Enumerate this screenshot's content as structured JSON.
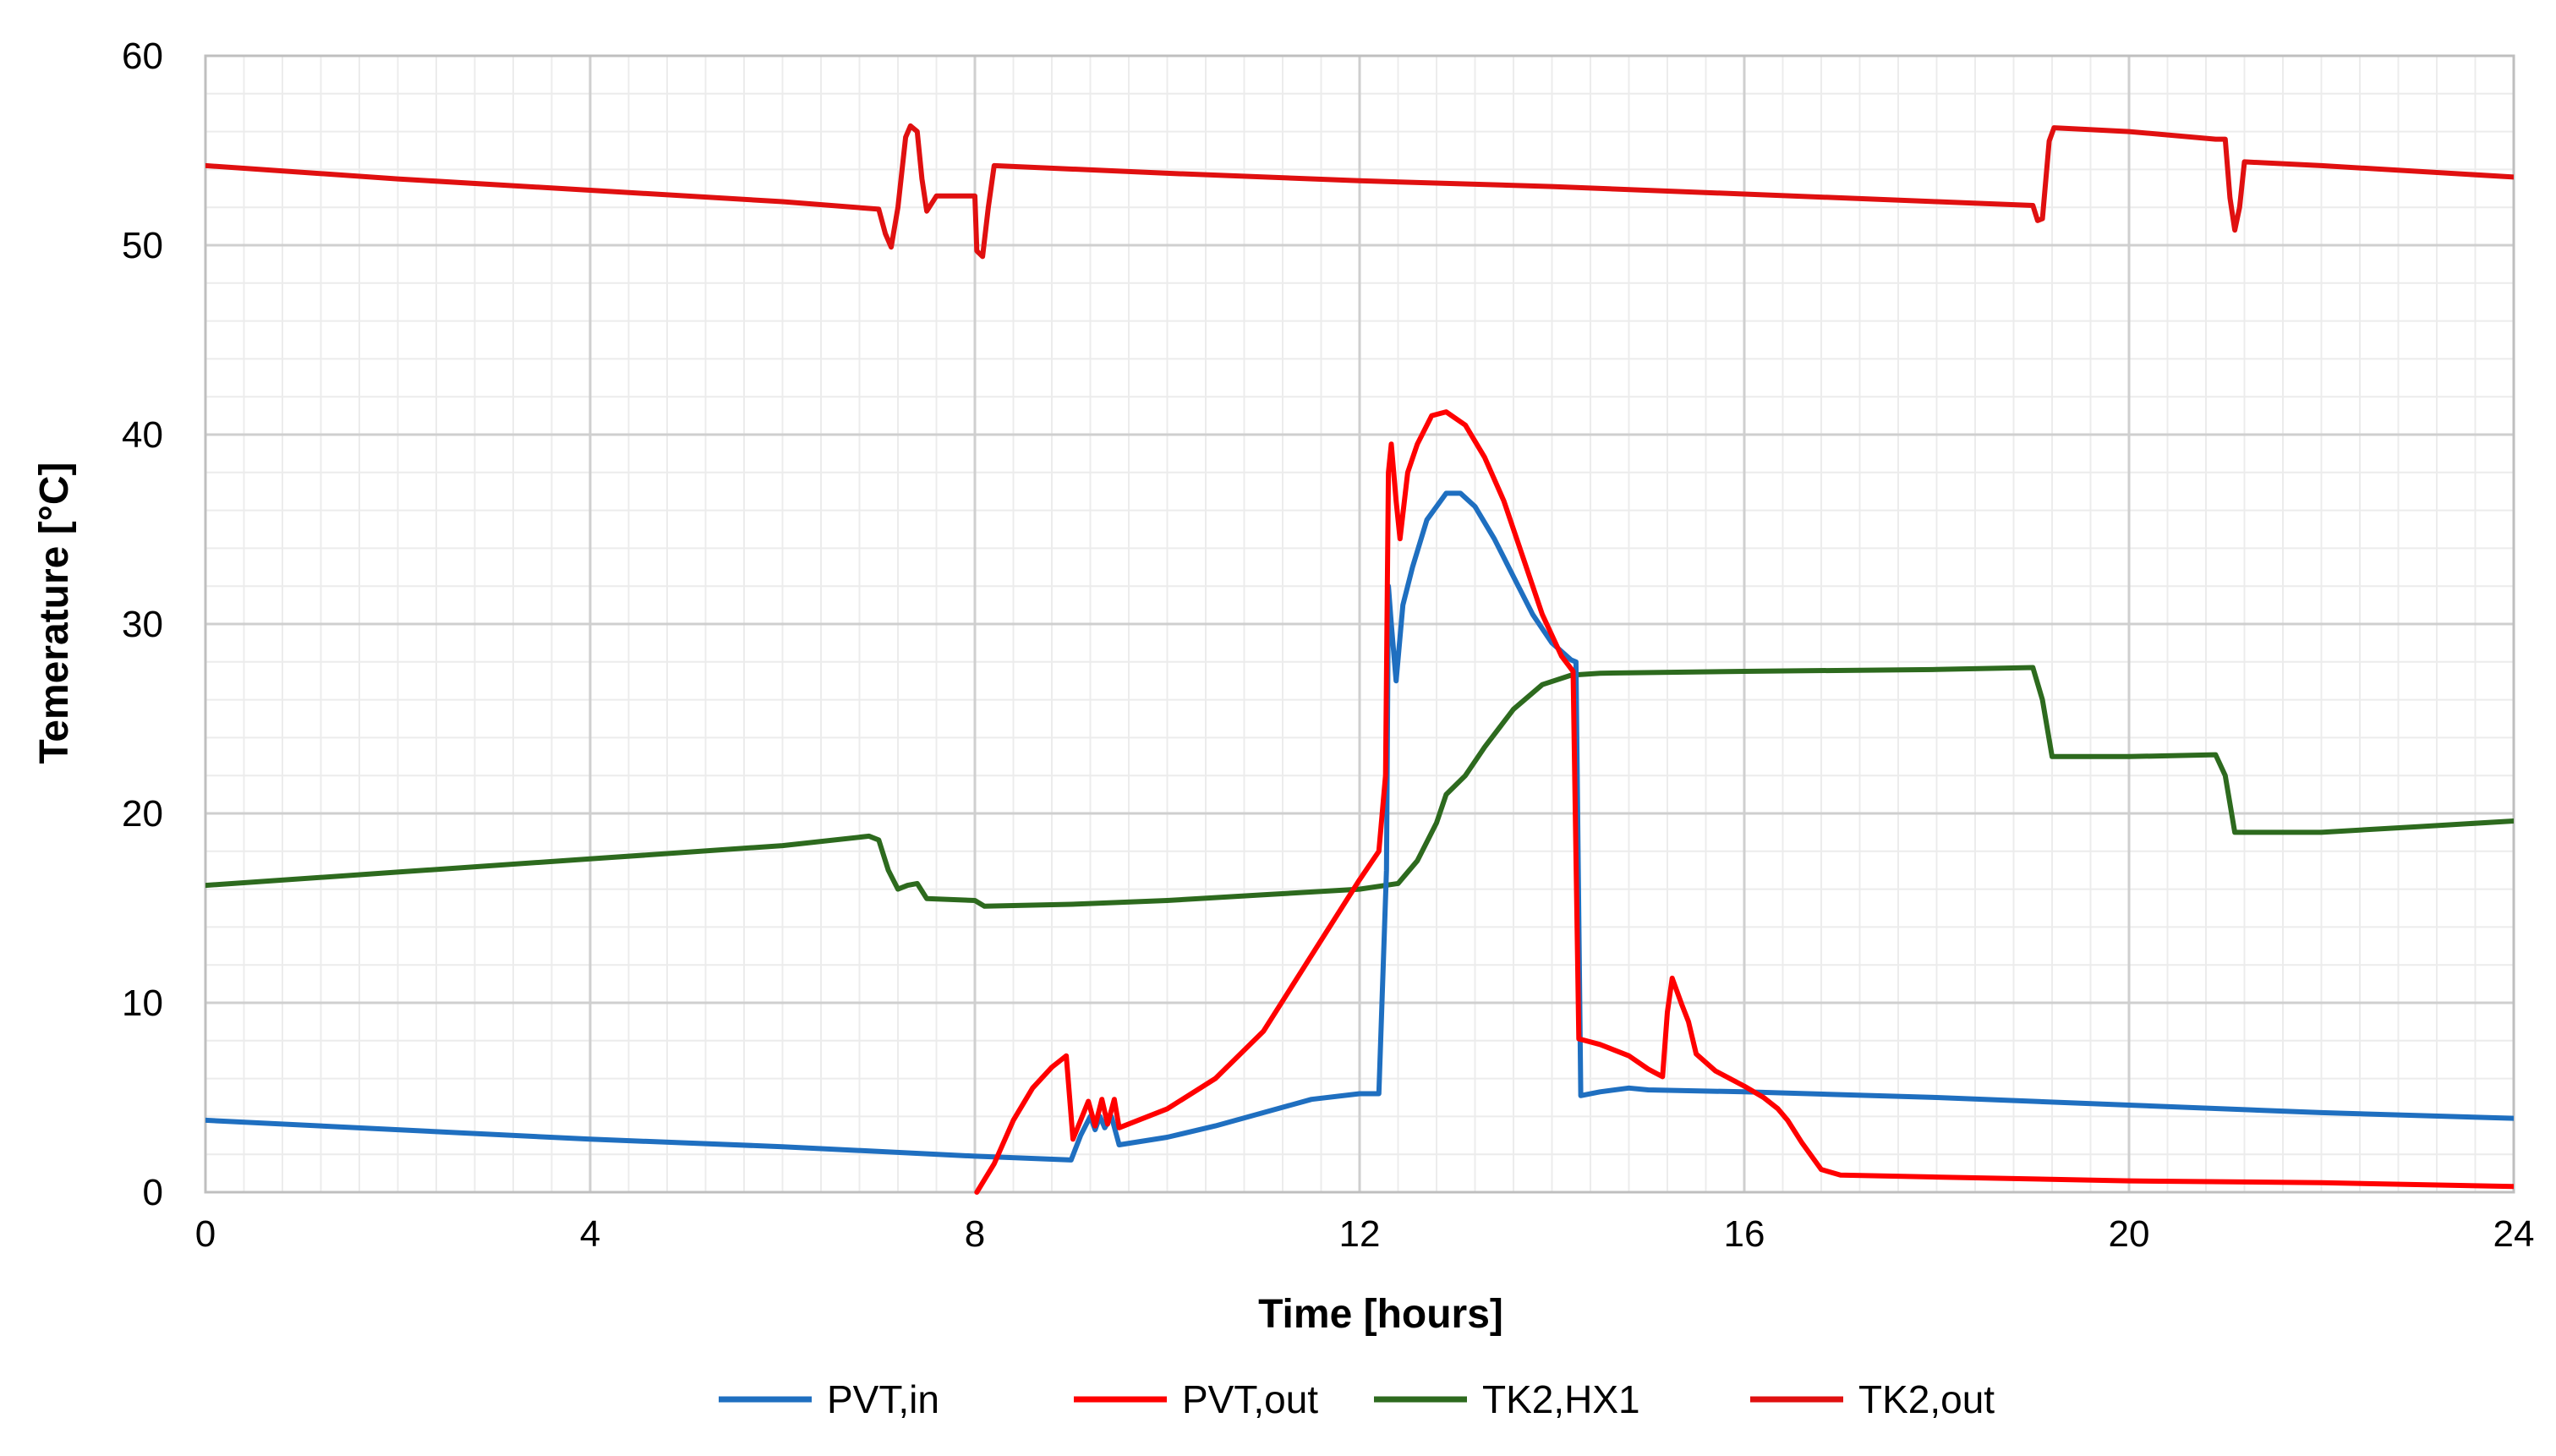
{
  "chart_data": {
    "type": "line",
    "title": "",
    "xlabel": "Time [hours]",
    "ylabel": "Temerature [°C]",
    "xlim": [
      0,
      24
    ],
    "ylim": [
      0,
      60
    ],
    "x_ticks": [
      0,
      4,
      8,
      12,
      16,
      20,
      24
    ],
    "y_ticks": [
      0,
      10,
      20,
      30,
      40,
      50,
      60
    ],
    "x_minor_step": 0.4,
    "y_minor_step": 2,
    "grid": true,
    "legend_position": "bottom",
    "series": [
      {
        "name": "PVT,in",
        "color": "#1f6fc0",
        "points": [
          [
            0,
            3.8
          ],
          [
            2,
            3.3
          ],
          [
            4,
            2.8
          ],
          [
            6,
            2.4
          ],
          [
            8,
            1.9
          ],
          [
            9,
            1.7
          ],
          [
            9.1,
            3
          ],
          [
            9.2,
            4
          ],
          [
            9.25,
            3.3
          ],
          [
            9.3,
            4
          ],
          [
            9.35,
            3.4
          ],
          [
            9.42,
            4
          ],
          [
            9.5,
            2.5
          ],
          [
            10,
            2.9
          ],
          [
            10.5,
            3.5
          ],
          [
            11,
            4.2
          ],
          [
            11.5,
            4.9
          ],
          [
            12,
            5.2
          ],
          [
            12.2,
            5.2
          ],
          [
            12.28,
            17
          ],
          [
            12.3,
            32
          ],
          [
            12.33,
            30
          ],
          [
            12.38,
            27
          ],
          [
            12.45,
            31
          ],
          [
            12.55,
            33
          ],
          [
            12.7,
            35.5
          ],
          [
            12.9,
            36.9
          ],
          [
            13.05,
            36.9
          ],
          [
            13.2,
            36.2
          ],
          [
            13.4,
            34.5
          ],
          [
            13.6,
            32.5
          ],
          [
            13.8,
            30.5
          ],
          [
            14,
            29
          ],
          [
            14.2,
            28.1
          ],
          [
            14.25,
            28
          ],
          [
            14.3,
            5.1
          ],
          [
            14.5,
            5.3
          ],
          [
            14.8,
            5.5
          ],
          [
            15,
            5.4
          ],
          [
            16,
            5.3
          ],
          [
            18,
            5
          ],
          [
            20,
            4.6
          ],
          [
            22,
            4.2
          ],
          [
            24,
            3.9
          ]
        ]
      },
      {
        "name": "PVT,out",
        "color": "#ff0000",
        "points": [
          [
            8.02,
            0
          ],
          [
            8.2,
            1.5
          ],
          [
            8.4,
            3.8
          ],
          [
            8.6,
            5.5
          ],
          [
            8.8,
            6.6
          ],
          [
            8.95,
            7.2
          ],
          [
            9.02,
            2.8
          ],
          [
            9.1,
            3.8
          ],
          [
            9.18,
            4.8
          ],
          [
            9.25,
            3.5
          ],
          [
            9.32,
            4.9
          ],
          [
            9.38,
            3.6
          ],
          [
            9.45,
            4.9
          ],
          [
            9.5,
            3.4
          ],
          [
            10,
            4.4
          ],
          [
            10.5,
            6
          ],
          [
            11,
            8.5
          ],
          [
            11.5,
            12.5
          ],
          [
            12,
            16.5
          ],
          [
            12.2,
            18
          ],
          [
            12.27,
            22
          ],
          [
            12.3,
            38
          ],
          [
            12.33,
            39.5
          ],
          [
            12.38,
            36.5
          ],
          [
            12.42,
            34.5
          ],
          [
            12.5,
            38
          ],
          [
            12.6,
            39.5
          ],
          [
            12.75,
            41
          ],
          [
            12.9,
            41.2
          ],
          [
            13.1,
            40.5
          ],
          [
            13.3,
            38.8
          ],
          [
            13.5,
            36.5
          ],
          [
            13.7,
            33.5
          ],
          [
            13.9,
            30.5
          ],
          [
            14.1,
            28.3
          ],
          [
            14.22,
            27.5
          ],
          [
            14.28,
            8.1
          ],
          [
            14.5,
            7.8
          ],
          [
            14.8,
            7.2
          ],
          [
            15,
            6.5
          ],
          [
            15.15,
            6.1
          ],
          [
            15.2,
            9.5
          ],
          [
            15.25,
            11.3
          ],
          [
            15.35,
            9.9
          ],
          [
            15.42,
            9
          ],
          [
            15.5,
            7.3
          ],
          [
            15.7,
            6.4
          ],
          [
            16,
            5.6
          ],
          [
            16.2,
            5
          ],
          [
            16.35,
            4.4
          ],
          [
            16.45,
            3.8
          ],
          [
            16.6,
            2.6
          ],
          [
            16.8,
            1.2
          ],
          [
            17,
            0.9
          ],
          [
            18,
            0.8
          ],
          [
            20,
            0.6
          ],
          [
            22,
            0.5
          ],
          [
            24,
            0.3
          ]
        ]
      },
      {
        "name": "TK2,HX1",
        "color": "#2d6a1e",
        "points": [
          [
            0,
            16.2
          ],
          [
            2,
            16.9
          ],
          [
            4,
            17.6
          ],
          [
            6,
            18.3
          ],
          [
            6.9,
            18.8
          ],
          [
            7,
            18.6
          ],
          [
            7.1,
            17
          ],
          [
            7.2,
            16
          ],
          [
            7.3,
            16.2
          ],
          [
            7.4,
            16.3
          ],
          [
            7.5,
            15.5
          ],
          [
            8,
            15.4
          ],
          [
            8.1,
            15.1
          ],
          [
            9,
            15.2
          ],
          [
            10,
            15.4
          ],
          [
            11,
            15.7
          ],
          [
            12,
            16
          ],
          [
            12.4,
            16.3
          ],
          [
            12.6,
            17.5
          ],
          [
            12.8,
            19.5
          ],
          [
            12.9,
            21
          ],
          [
            13.1,
            22
          ],
          [
            13.3,
            23.5
          ],
          [
            13.6,
            25.5
          ],
          [
            13.9,
            26.8
          ],
          [
            14.2,
            27.3
          ],
          [
            14.5,
            27.4
          ],
          [
            16,
            27.5
          ],
          [
            18,
            27.6
          ],
          [
            19,
            27.7
          ],
          [
            19.1,
            26
          ],
          [
            19.2,
            23
          ],
          [
            20,
            23
          ],
          [
            20.9,
            23.1
          ],
          [
            21,
            22
          ],
          [
            21.1,
            19
          ],
          [
            22,
            19
          ],
          [
            23,
            19.3
          ],
          [
            24,
            19.6
          ]
        ]
      },
      {
        "name": "TK2,out",
        "color": "#e01010",
        "points": [
          [
            0,
            54.2
          ],
          [
            2,
            53.5
          ],
          [
            4,
            52.9
          ],
          [
            6,
            52.3
          ],
          [
            7,
            51.9
          ],
          [
            7.07,
            50.6
          ],
          [
            7.13,
            49.9
          ],
          [
            7.2,
            52
          ],
          [
            7.28,
            55.7
          ],
          [
            7.33,
            56.3
          ],
          [
            7.4,
            56
          ],
          [
            7.45,
            53.5
          ],
          [
            7.5,
            51.8
          ],
          [
            7.6,
            52.6
          ],
          [
            8,
            52.6
          ],
          [
            8.02,
            49.7
          ],
          [
            8.08,
            49.4
          ],
          [
            8.14,
            52
          ],
          [
            8.2,
            54.2
          ],
          [
            10,
            53.8
          ],
          [
            12,
            53.4
          ],
          [
            14,
            53.1
          ],
          [
            16,
            52.7
          ],
          [
            18,
            52.3
          ],
          [
            19,
            52.1
          ],
          [
            19.05,
            51.3
          ],
          [
            19.1,
            51.4
          ],
          [
            19.17,
            55.5
          ],
          [
            19.22,
            56.2
          ],
          [
            20,
            56
          ],
          [
            20.9,
            55.6
          ],
          [
            21,
            55.6
          ],
          [
            21.05,
            52.5
          ],
          [
            21.1,
            50.8
          ],
          [
            21.15,
            52
          ],
          [
            21.2,
            54.4
          ],
          [
            22,
            54.2
          ],
          [
            24,
            53.6
          ]
        ]
      }
    ]
  }
}
